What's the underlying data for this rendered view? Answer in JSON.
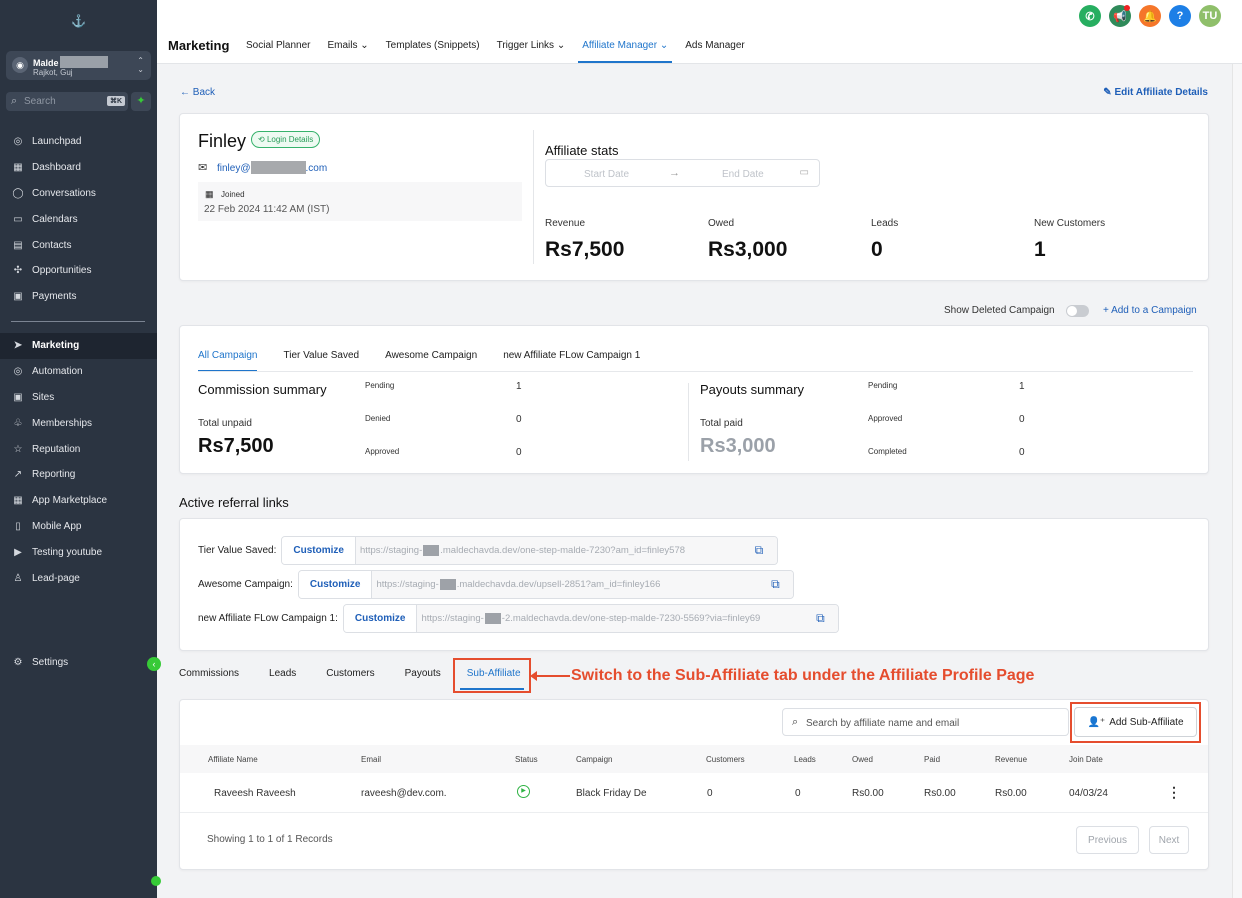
{
  "sidebar": {
    "account": {
      "name": "Malde",
      "location": "Rajkot, Guj"
    },
    "search": {
      "placeholder": "Search",
      "shortcut": "⌘K"
    },
    "items": [
      {
        "label": "Launchpad",
        "icon": "launchpad-icon"
      },
      {
        "label": "Dashboard",
        "icon": "dashboard-icon"
      },
      {
        "label": "Conversations",
        "icon": "conversations-icon"
      },
      {
        "label": "Calendars",
        "icon": "calendar-icon"
      },
      {
        "label": "Contacts",
        "icon": "contacts-icon"
      },
      {
        "label": "Opportunities",
        "icon": "opportunities-icon"
      },
      {
        "label": "Payments",
        "icon": "payments-icon"
      }
    ],
    "items2": [
      {
        "label": "Marketing",
        "icon": "marketing-icon",
        "active": true
      },
      {
        "label": "Automation",
        "icon": "automation-icon"
      },
      {
        "label": "Sites",
        "icon": "sites-icon"
      },
      {
        "label": "Memberships",
        "icon": "memberships-icon"
      },
      {
        "label": "Reputation",
        "icon": "reputation-icon"
      },
      {
        "label": "Reporting",
        "icon": "reporting-icon"
      },
      {
        "label": "App Marketplace",
        "icon": "marketplace-icon"
      },
      {
        "label": "Mobile App",
        "icon": "mobile-icon"
      },
      {
        "label": "Testing youtube",
        "icon": "youtube-icon"
      },
      {
        "label": "Lead-page",
        "icon": "lead-page-icon"
      }
    ],
    "settings": "Settings"
  },
  "topbar": {
    "title": "Marketing",
    "tabs": [
      {
        "label": "Social Planner",
        "chevron": false
      },
      {
        "label": "Emails",
        "chevron": true
      },
      {
        "label": "Templates (Snippets)",
        "chevron": false
      },
      {
        "label": "Trigger Links",
        "chevron": true
      },
      {
        "label": "Affiliate Manager",
        "chevron": true,
        "active": true
      },
      {
        "label": "Ads Manager",
        "chevron": false
      }
    ],
    "avatar": "TU",
    "colors": {
      "phone": "#27ae60",
      "megaphone": "#2f8a5a",
      "bell": "#f5762a",
      "help": "#1d7fe6",
      "avatar": "#8fbf6a"
    }
  },
  "page": {
    "back": "Back",
    "edit": "Edit Affiliate Details"
  },
  "profile": {
    "name": "Finley",
    "badge": "Login Details",
    "email_prefix": "finley@",
    "email_suffix": ".com",
    "joined_label": "Joined",
    "joined_value": "22 Feb 2024 11:42 AM (IST)"
  },
  "stats": {
    "title": "Affiliate stats",
    "start_placeholder": "Start Date",
    "end_placeholder": "End Date",
    "items": [
      {
        "label": "Revenue",
        "value": "Rs7,500"
      },
      {
        "label": "Owed",
        "value": "Rs3,000"
      },
      {
        "label": "Leads",
        "value": "0"
      },
      {
        "label": "New Customers",
        "value": "1"
      }
    ]
  },
  "campaign_controls": {
    "show_deleted": "Show Deleted Campaign",
    "add_campaign": "Add to a Campaign"
  },
  "campaign": {
    "tabs": [
      "All Campaign",
      "Tier Value Saved",
      "Awesome Campaign",
      "new Affiliate FLow Campaign 1"
    ],
    "commission": {
      "title": "Commission summary",
      "total_label": "Total unpaid",
      "total_value": "Rs7,500",
      "rows": [
        {
          "k": "Pending",
          "v": "1"
        },
        {
          "k": "Denied",
          "v": "0"
        },
        {
          "k": "Approved",
          "v": "0"
        }
      ]
    },
    "payouts": {
      "title": "Payouts summary",
      "total_label": "Total paid",
      "total_value": "Rs3,000",
      "rows": [
        {
          "k": "Pending",
          "v": "1"
        },
        {
          "k": "Approved",
          "v": "0"
        },
        {
          "k": "Completed",
          "v": "0"
        }
      ]
    }
  },
  "referral": {
    "title": "Active referral links",
    "customize": "Customize",
    "links": [
      {
        "label": "Tier Value Saved:",
        "url_pre": "https://staging-",
        "url_post": ".maldechavda.dev/one-step-malde-7230?am_id=finley578"
      },
      {
        "label": "Awesome Campaign:",
        "url_pre": "https://staging-",
        "url_post": ".maldechavda.dev/upsell-2851?am_id=finley166"
      },
      {
        "label": "new Affiliate FLow Campaign 1:",
        "url_pre": "https://staging-",
        "url_post": "-2.maldechavda.dev/one-step-malde-7230-5569?via=finley69"
      }
    ]
  },
  "bottom_tabs": [
    "Commissions",
    "Leads",
    "Customers",
    "Payouts",
    "Sub-Affiliate"
  ],
  "annotation": "Switch to the Sub-Affiliate tab under the Affiliate Profile Page",
  "sub_affiliate": {
    "search_placeholder": "Search by affiliate name and email",
    "add_button": "Add Sub-Affiliate",
    "columns": [
      "Affiliate Name",
      "Email",
      "Status",
      "Campaign",
      "Customers",
      "Leads",
      "Owed",
      "Paid",
      "Revenue",
      "Join Date"
    ],
    "rows": [
      {
        "name": "Raveesh Raveesh",
        "email": "raveesh@dev.com.",
        "campaign": "Black Friday De",
        "customers": "0",
        "leads": "0",
        "owed": "Rs0.00",
        "paid": "Rs0.00",
        "revenue": "Rs0.00",
        "join_date": "04/03/24"
      }
    ],
    "showing": "Showing 1 to 1 of 1 Records",
    "previous": "Previous",
    "next": "Next"
  }
}
